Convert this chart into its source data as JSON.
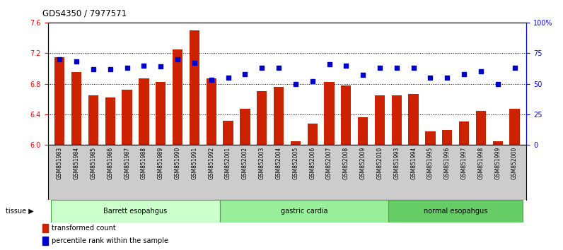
{
  "title": "GDS4350 / 7977571",
  "samples": [
    "GSM851983",
    "GSM851984",
    "GSM851985",
    "GSM851986",
    "GSM851987",
    "GSM851988",
    "GSM851989",
    "GSM851990",
    "GSM851991",
    "GSM851992",
    "GSM852001",
    "GSM852002",
    "GSM852003",
    "GSM852004",
    "GSM852005",
    "GSM852006",
    "GSM852007",
    "GSM852008",
    "GSM852009",
    "GSM852010",
    "GSM851993",
    "GSM851994",
    "GSM851995",
    "GSM851996",
    "GSM851997",
    "GSM851998",
    "GSM851999",
    "GSM852000"
  ],
  "bar_values": [
    7.15,
    6.95,
    6.65,
    6.62,
    6.72,
    6.87,
    6.82,
    7.25,
    7.5,
    6.87,
    6.32,
    6.47,
    6.7,
    6.76,
    6.05,
    6.28,
    6.82,
    6.78,
    6.36,
    6.65,
    6.65,
    6.67,
    6.18,
    6.2,
    6.31,
    6.45,
    6.05,
    6.47
  ],
  "percentile_values": [
    70,
    68,
    62,
    62,
    63,
    65,
    64,
    70,
    67,
    53,
    55,
    58,
    63,
    63,
    50,
    52,
    66,
    65,
    57,
    63,
    63,
    63,
    55,
    55,
    58,
    60,
    50,
    63
  ],
  "groups": [
    {
      "label": "Barrett esopahgus",
      "start": 0,
      "end": 10,
      "color": "#ccffcc",
      "edge_color": "#44aa44"
    },
    {
      "label": "gastric cardia",
      "start": 10,
      "end": 20,
      "color": "#99ee99",
      "edge_color": "#44aa44"
    },
    {
      "label": "normal esopahgus",
      "start": 20,
      "end": 28,
      "color": "#66cc66",
      "edge_color": "#44aa44"
    }
  ],
  "ylim_left": [
    6.0,
    7.6
  ],
  "ylim_right": [
    0,
    100
  ],
  "yticks_left": [
    6.0,
    6.4,
    6.8,
    7.2,
    7.6
  ],
  "yticks_right": [
    0,
    25,
    50,
    75,
    100
  ],
  "ytick_labels_right": [
    "0",
    "25",
    "50",
    "75",
    "100%"
  ],
  "bar_color": "#cc2200",
  "dot_color": "#0000cc",
  "bar_width": 0.6,
  "background_color": "#ffffff",
  "tick_area_bg": "#cccccc"
}
